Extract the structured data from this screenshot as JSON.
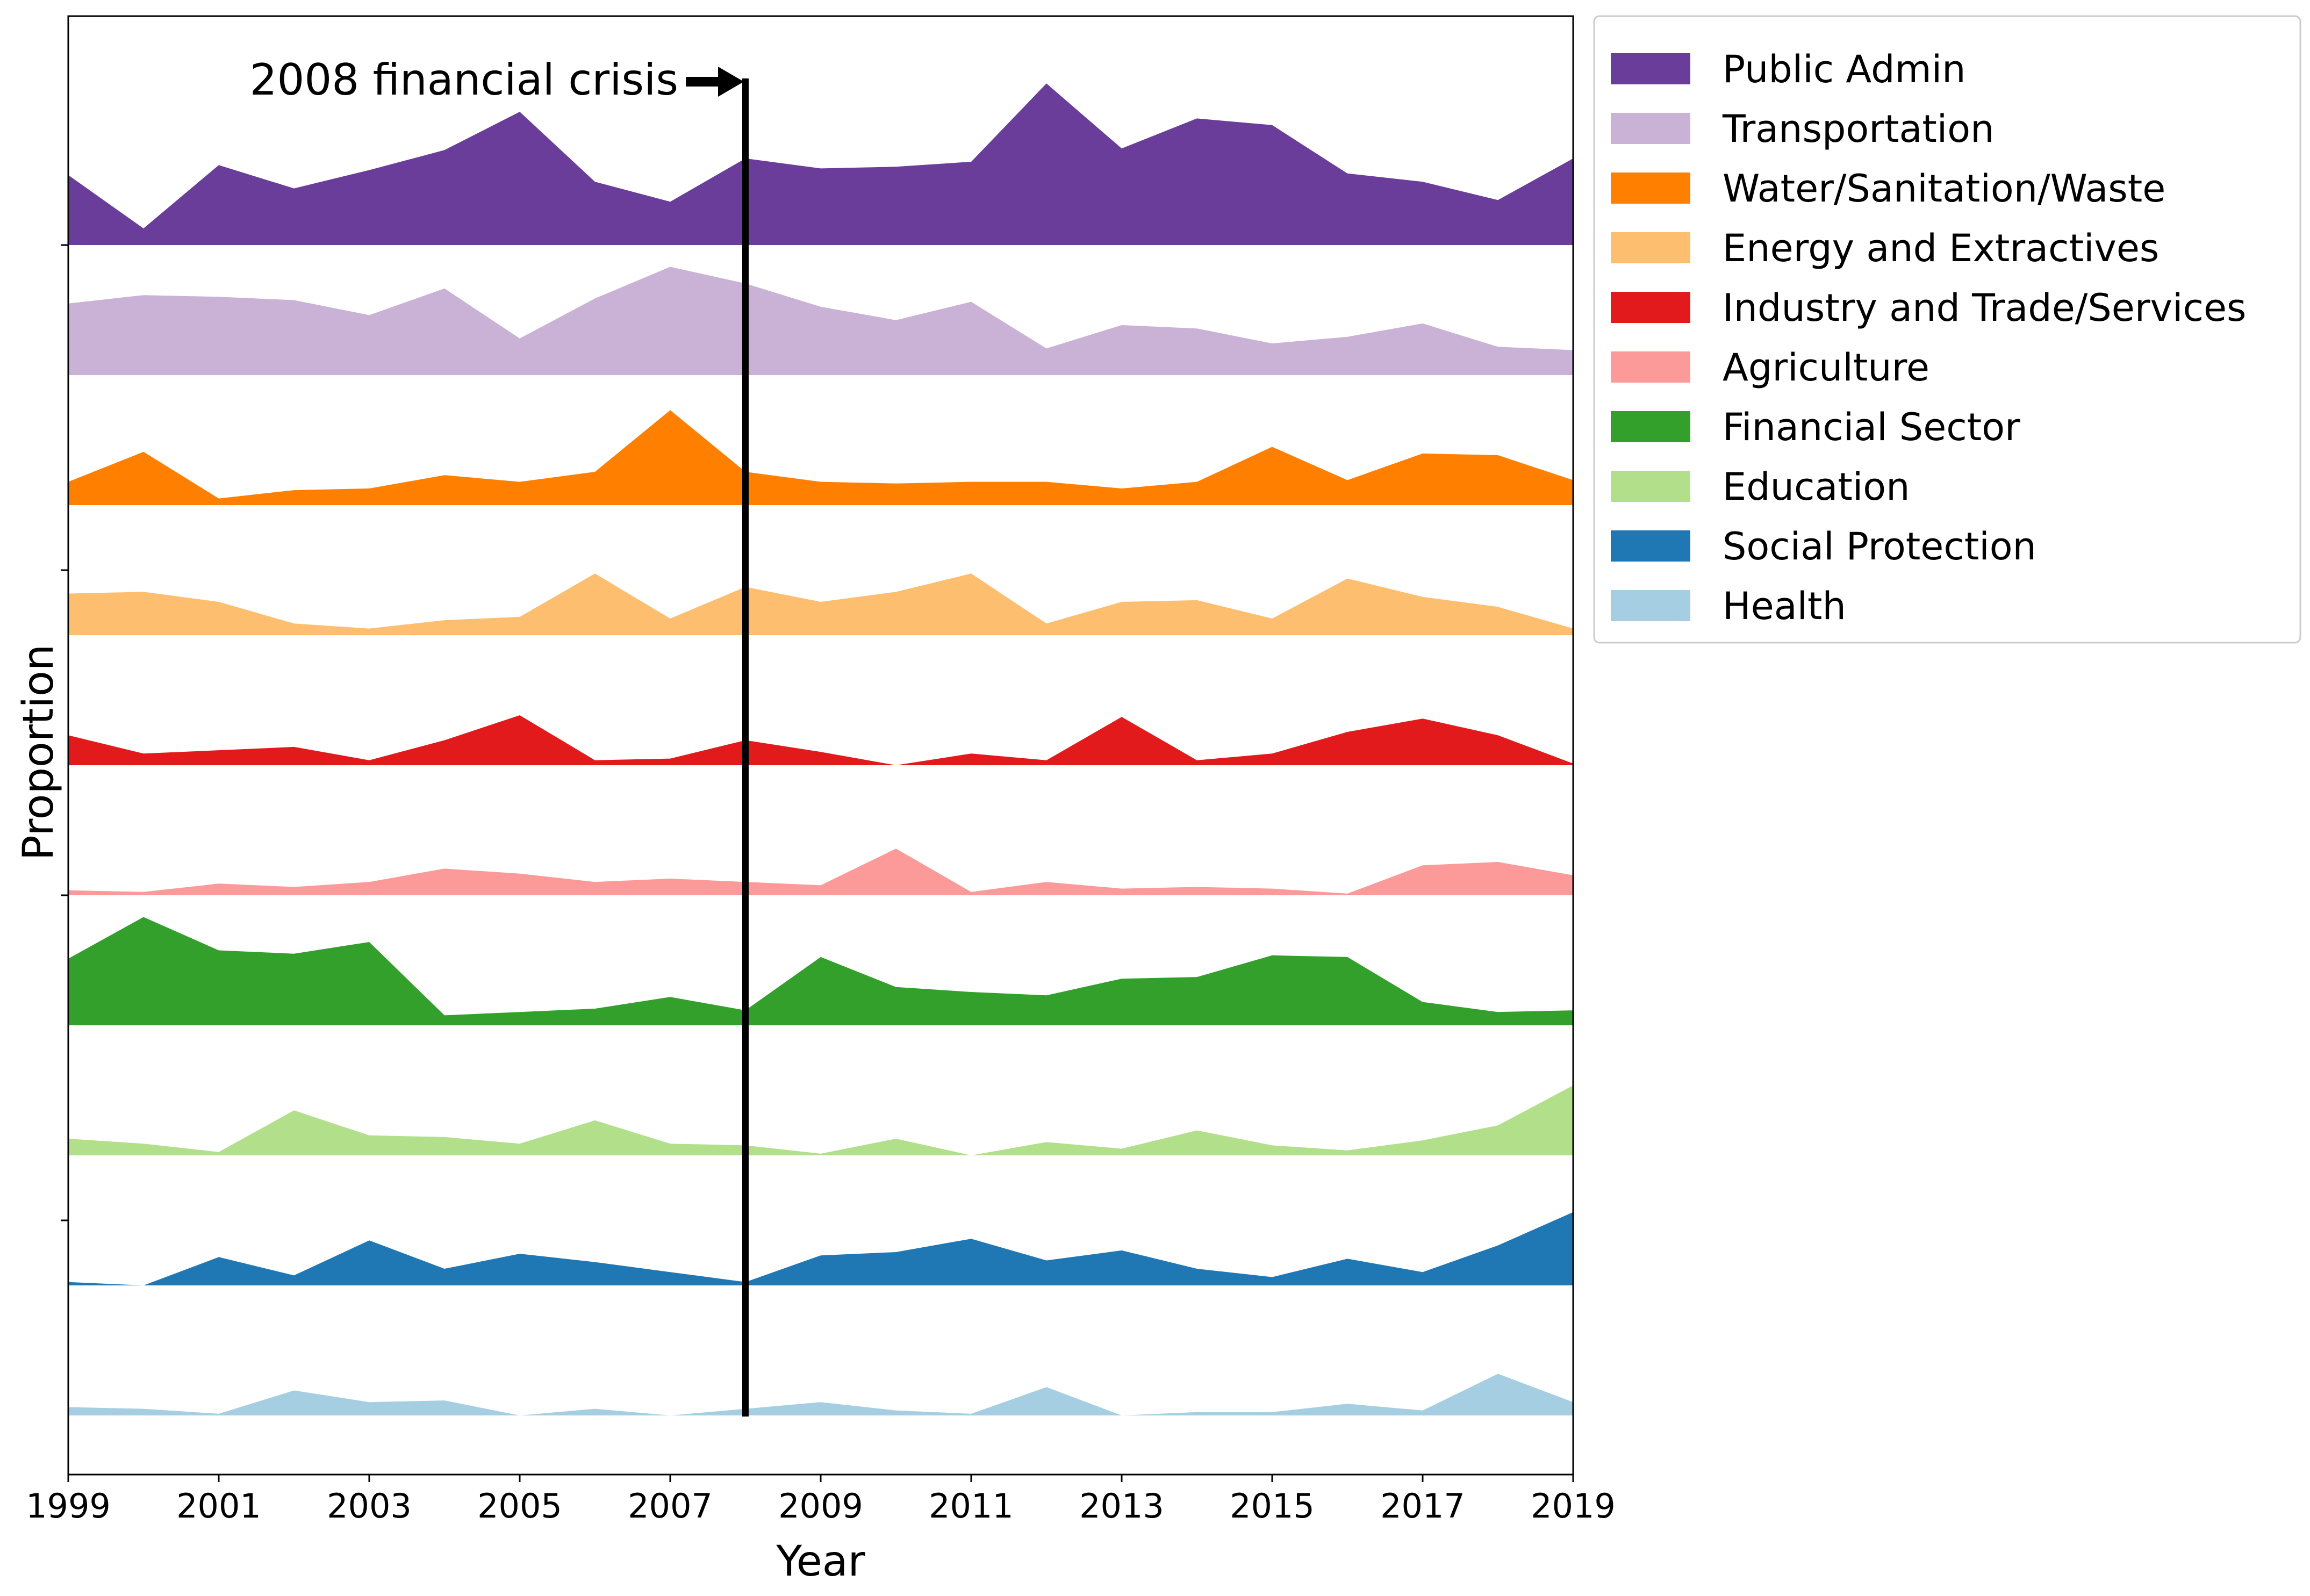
{
  "chart_data": {
    "type": "area",
    "xlabel": "Year",
    "ylabel": "Proportion",
    "x": [
      1999,
      2000,
      2001,
      2002,
      2003,
      2004,
      2005,
      2006,
      2007,
      2008,
      2009,
      2010,
      2011,
      2012,
      2013,
      2014,
      2015,
      2016,
      2017,
      2018,
      2019
    ],
    "xlim": [
      1999,
      2019
    ],
    "xticks": [
      "1999",
      "2001",
      "2003",
      "2005",
      "2007",
      "2009",
      "2011",
      "2013",
      "2015",
      "2017",
      "2019"
    ],
    "grid": false,
    "legend_position": "outside-right",
    "series": [
      {
        "name": "Public Admin",
        "color": "#6a3d9a",
        "values": [
          0.42,
          0.1,
          0.48,
          0.34,
          0.45,
          0.57,
          0.8,
          0.38,
          0.26,
          0.52,
          0.46,
          0.47,
          0.5,
          0.97,
          0.58,
          0.76,
          0.72,
          0.43,
          0.38,
          0.27,
          0.52
        ]
      },
      {
        "name": "Transportation",
        "color": "#cab2d6",
        "values": [
          0.43,
          0.48,
          0.47,
          0.45,
          0.36,
          0.52,
          0.22,
          0.46,
          0.65,
          0.55,
          0.41,
          0.33,
          0.44,
          0.16,
          0.3,
          0.28,
          0.19,
          0.23,
          0.31,
          0.17,
          0.15
        ]
      },
      {
        "name": "Water/Sanitation/Waste",
        "color": "#ff7f00",
        "values": [
          0.14,
          0.32,
          0.04,
          0.09,
          0.1,
          0.18,
          0.14,
          0.2,
          0.57,
          0.2,
          0.14,
          0.13,
          0.14,
          0.14,
          0.1,
          0.14,
          0.35,
          0.15,
          0.31,
          0.3,
          0.15
        ]
      },
      {
        "name": "Energy and Extractives",
        "color": "#fdbf6f",
        "values": [
          0.25,
          0.26,
          0.2,
          0.07,
          0.04,
          0.09,
          0.11,
          0.37,
          0.1,
          0.29,
          0.2,
          0.26,
          0.37,
          0.07,
          0.2,
          0.21,
          0.1,
          0.34,
          0.23,
          0.17,
          0.04
        ]
      },
      {
        "name": "Industry and Trade/Services",
        "color": "#e31a1c",
        "values": [
          0.18,
          0.07,
          0.09,
          0.11,
          0.03,
          0.15,
          0.3,
          0.03,
          0.04,
          0.15,
          0.08,
          0.0,
          0.07,
          0.03,
          0.29,
          0.03,
          0.07,
          0.2,
          0.28,
          0.18,
          0.01
        ]
      },
      {
        "name": "Agriculture",
        "color": "#fb9a99",
        "values": [
          0.03,
          0.02,
          0.07,
          0.05,
          0.08,
          0.16,
          0.13,
          0.08,
          0.1,
          0.08,
          0.06,
          0.28,
          0.02,
          0.08,
          0.04,
          0.05,
          0.04,
          0.01,
          0.18,
          0.2,
          0.12
        ]
      },
      {
        "name": "Financial Sector",
        "color": "#33a02c",
        "values": [
          0.4,
          0.65,
          0.45,
          0.43,
          0.5,
          0.06,
          0.08,
          0.1,
          0.17,
          0.09,
          0.41,
          0.23,
          0.2,
          0.18,
          0.28,
          0.29,
          0.42,
          0.41,
          0.14,
          0.08,
          0.09
        ]
      },
      {
        "name": "Education",
        "color": "#b2df8a",
        "values": [
          0.1,
          0.07,
          0.02,
          0.27,
          0.12,
          0.11,
          0.07,
          0.21,
          0.07,
          0.06,
          0.01,
          0.1,
          0.0,
          0.08,
          0.04,
          0.15,
          0.06,
          0.03,
          0.09,
          0.18,
          0.42
        ]
      },
      {
        "name": "Social Protection",
        "color": "#1f78b4",
        "values": [
          0.02,
          0.0,
          0.17,
          0.06,
          0.27,
          0.1,
          0.19,
          0.14,
          0.08,
          0.02,
          0.18,
          0.2,
          0.28,
          0.15,
          0.21,
          0.1,
          0.05,
          0.16,
          0.08,
          0.24,
          0.44
        ]
      },
      {
        "name": "Health",
        "color": "#a6cee3",
        "values": [
          0.05,
          0.04,
          0.01,
          0.15,
          0.08,
          0.09,
          0.0,
          0.04,
          0.0,
          0.04,
          0.08,
          0.03,
          0.01,
          0.17,
          0.0,
          0.02,
          0.02,
          0.07,
          0.03,
          0.25,
          0.08
        ]
      }
    ],
    "annotations": [
      {
        "text": "2008 financial crisis",
        "x": 2008
      }
    ]
  }
}
